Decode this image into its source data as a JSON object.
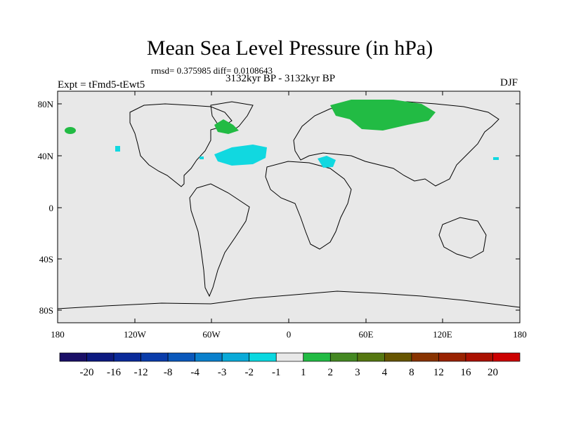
{
  "title": "Mean Sea Level Pressure (in hPa)",
  "stats": "rmsd= 0.375985 diff= 0.0108643",
  "period": "3132kyr BP - 3132kyr BP",
  "experiment": "Expt = tFmd5-tEwt5",
  "season": "DJF",
  "lat_labels": [
    "80N",
    "40N",
    "0",
    "40S",
    "80S"
  ],
  "lon_labels": [
    "180",
    "120W",
    "60W",
    "0",
    "60E",
    "120E",
    "180"
  ],
  "colorbar": {
    "labels": [
      "-20",
      "-16",
      "-12",
      "-8",
      "-4",
      "-3",
      "-2",
      "-1",
      "1",
      "2",
      "3",
      "4",
      "8",
      "12",
      "16",
      "20"
    ],
    "colors": [
      "#1a0f66",
      "#0d1a80",
      "#0a2a99",
      "#0a3caa",
      "#0a58bb",
      "#0a80cc",
      "#0aaad8",
      "#0ad8e0",
      "#e8e8e8",
      "#22bb44",
      "#448822",
      "#557711",
      "#665500",
      "#883300",
      "#992200",
      "#aa1100",
      "#cc0000"
    ]
  },
  "colors": {
    "ocean": "#e8e8e8",
    "positive": "#22bb44",
    "negative": "#11d8e0"
  }
}
